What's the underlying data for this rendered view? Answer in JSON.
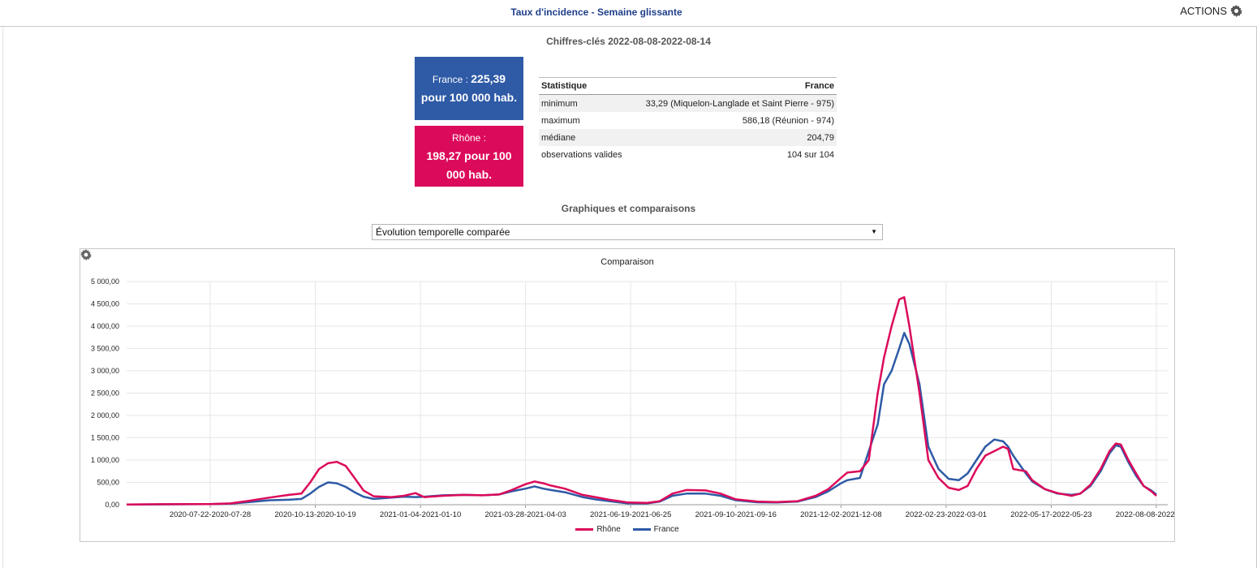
{
  "header": {
    "title": "Taux d'incidence - Semaine glissante",
    "actions_label": "ACTIONS"
  },
  "key_figures": {
    "title": "Chiffres-clés 2022-08-08-2022-08-14",
    "france": {
      "label": "France :",
      "value": "225,39",
      "unit": "pour 100 000 hab.",
      "color": "#2e5aa6"
    },
    "rhone": {
      "label": "Rhône :",
      "value": "198,27 pour 100 000 hab.",
      "color": "#dc0a5a"
    }
  },
  "stats_table": {
    "headers": [
      "Statistique",
      "France"
    ],
    "rows": [
      [
        "minimum",
        "33,29 (Miquelon-Langlade et Saint Pierre - 975)"
      ],
      [
        "maximum",
        "586,18 (Réunion - 974)"
      ],
      [
        "médiane",
        "204,79"
      ],
      [
        "observations valides",
        "104 sur 104"
      ]
    ]
  },
  "charts_section": {
    "title": "Graphiques et comparaisons",
    "select_value": "Évolution temporelle comparée"
  },
  "chart_data": {
    "type": "line",
    "title": "Comparaison",
    "ylim": [
      0,
      5000
    ],
    "yticks": [
      "0,00",
      "500,00",
      "1 000,00",
      "1 500,00",
      "2 000,00",
      "2 500,00",
      "3 000,00",
      "3 500,00",
      "4 000,00",
      "4 500,00",
      "5 000,00"
    ],
    "xlim": [
      "2020-05-20",
      "2022-08-20"
    ],
    "xticks": [
      {
        "label": "2020-07-22-2020-07-28",
        "date": "2020-07-25"
      },
      {
        "label": "2020-10-13-2020-10-19",
        "date": "2020-10-16"
      },
      {
        "label": "2021-01-04-2021-01-10",
        "date": "2021-01-07"
      },
      {
        "label": "2021-03-28-2021-04-03",
        "date": "2021-03-31"
      },
      {
        "label": "2021-06-19-2021-06-25",
        "date": "2021-06-22"
      },
      {
        "label": "2021-09-10-2021-09-16",
        "date": "2021-09-13"
      },
      {
        "label": "2021-12-02-2021-12-08",
        "date": "2021-12-05"
      },
      {
        "label": "2022-02-23-2022-03-01",
        "date": "2022-02-26"
      },
      {
        "label": "2022-05-17-2022-05-23",
        "date": "2022-05-20"
      },
      {
        "label": "2022-08-08-2022-08-14",
        "date": "2022-08-11"
      }
    ],
    "grid": true,
    "legend_position": "bottom",
    "series": [
      {
        "name": "Rhône",
        "color": "#dc0a5a",
        "points": [
          [
            "2020-05-20",
            5
          ],
          [
            "2020-06-15",
            10
          ],
          [
            "2020-07-10",
            12
          ],
          [
            "2020-07-25",
            15
          ],
          [
            "2020-08-10",
            30
          ],
          [
            "2020-08-25",
            90
          ],
          [
            "2020-09-10",
            160
          ],
          [
            "2020-09-25",
            220
          ],
          [
            "2020-10-05",
            250
          ],
          [
            "2020-10-12",
            500
          ],
          [
            "2020-10-19",
            800
          ],
          [
            "2020-10-26",
            930
          ],
          [
            "2020-11-02",
            960
          ],
          [
            "2020-11-09",
            870
          ],
          [
            "2020-11-16",
            600
          ],
          [
            "2020-11-23",
            320
          ],
          [
            "2020-12-01",
            190
          ],
          [
            "2020-12-15",
            170
          ],
          [
            "2020-12-25",
            200
          ],
          [
            "2021-01-03",
            260
          ],
          [
            "2021-01-10",
            170
          ],
          [
            "2021-01-25",
            200
          ],
          [
            "2021-02-10",
            220
          ],
          [
            "2021-02-25",
            210
          ],
          [
            "2021-03-10",
            230
          ],
          [
            "2021-03-20",
            330
          ],
          [
            "2021-03-31",
            460
          ],
          [
            "2021-04-07",
            520
          ],
          [
            "2021-04-14",
            480
          ],
          [
            "2021-04-20",
            430
          ],
          [
            "2021-05-01",
            360
          ],
          [
            "2021-05-15",
            220
          ],
          [
            "2021-05-25",
            170
          ],
          [
            "2021-06-05",
            110
          ],
          [
            "2021-06-20",
            50
          ],
          [
            "2021-07-05",
            40
          ],
          [
            "2021-07-15",
            80
          ],
          [
            "2021-07-25",
            250
          ],
          [
            "2021-08-05",
            330
          ],
          [
            "2021-08-20",
            320
          ],
          [
            "2021-09-01",
            250
          ],
          [
            "2021-09-13",
            120
          ],
          [
            "2021-09-30",
            70
          ],
          [
            "2021-10-15",
            60
          ],
          [
            "2021-11-01",
            80
          ],
          [
            "2021-11-15",
            200
          ],
          [
            "2021-11-25",
            350
          ],
          [
            "2021-12-05",
            600
          ],
          [
            "2021-12-10",
            720
          ],
          [
            "2021-12-20",
            750
          ],
          [
            "2021-12-27",
            1000
          ],
          [
            "2022-01-03",
            2500
          ],
          [
            "2022-01-08",
            3300
          ],
          [
            "2022-01-14",
            4000
          ],
          [
            "2022-01-20",
            4600
          ],
          [
            "2022-01-24",
            4650
          ],
          [
            "2022-01-28",
            4000
          ],
          [
            "2022-02-05",
            2500
          ],
          [
            "2022-02-12",
            1000
          ],
          [
            "2022-02-20",
            600
          ],
          [
            "2022-02-28",
            380
          ],
          [
            "2022-03-08",
            330
          ],
          [
            "2022-03-15",
            420
          ],
          [
            "2022-03-22",
            800
          ],
          [
            "2022-03-29",
            1100
          ],
          [
            "2022-04-05",
            1200
          ],
          [
            "2022-04-12",
            1300
          ],
          [
            "2022-04-16",
            1250
          ],
          [
            "2022-04-20",
            800
          ],
          [
            "2022-04-30",
            750
          ],
          [
            "2022-05-05",
            550
          ],
          [
            "2022-05-15",
            350
          ],
          [
            "2022-05-25",
            260
          ],
          [
            "2022-06-05",
            200
          ],
          [
            "2022-06-12",
            250
          ],
          [
            "2022-06-20",
            450
          ],
          [
            "2022-06-28",
            800
          ],
          [
            "2022-07-05",
            1200
          ],
          [
            "2022-07-10",
            1370
          ],
          [
            "2022-07-14",
            1350
          ],
          [
            "2022-07-20",
            1000
          ],
          [
            "2022-07-26",
            700
          ],
          [
            "2022-08-01",
            420
          ],
          [
            "2022-08-07",
            300
          ],
          [
            "2022-08-11",
            198
          ]
        ]
      },
      {
        "name": "France",
        "color": "#2e5aa6",
        "points": [
          [
            "2020-05-20",
            5
          ],
          [
            "2020-06-15",
            8
          ],
          [
            "2020-07-10",
            10
          ],
          [
            "2020-07-25",
            15
          ],
          [
            "2020-08-10",
            25
          ],
          [
            "2020-08-25",
            60
          ],
          [
            "2020-09-10",
            100
          ],
          [
            "2020-09-25",
            110
          ],
          [
            "2020-10-05",
            130
          ],
          [
            "2020-10-12",
            250
          ],
          [
            "2020-10-19",
            400
          ],
          [
            "2020-10-26",
            500
          ],
          [
            "2020-11-02",
            480
          ],
          [
            "2020-11-09",
            400
          ],
          [
            "2020-11-16",
            280
          ],
          [
            "2020-11-23",
            180
          ],
          [
            "2020-12-01",
            130
          ],
          [
            "2020-12-15",
            160
          ],
          [
            "2020-12-25",
            180
          ],
          [
            "2021-01-03",
            170
          ],
          [
            "2021-01-10",
            180
          ],
          [
            "2021-01-25",
            210
          ],
          [
            "2021-02-10",
            220
          ],
          [
            "2021-02-25",
            210
          ],
          [
            "2021-03-10",
            230
          ],
          [
            "2021-03-20",
            300
          ],
          [
            "2021-03-31",
            360
          ],
          [
            "2021-04-07",
            410
          ],
          [
            "2021-04-14",
            360
          ],
          [
            "2021-04-20",
            330
          ],
          [
            "2021-05-01",
            280
          ],
          [
            "2021-05-15",
            170
          ],
          [
            "2021-05-25",
            120
          ],
          [
            "2021-06-05",
            80
          ],
          [
            "2021-06-20",
            30
          ],
          [
            "2021-07-05",
            30
          ],
          [
            "2021-07-15",
            70
          ],
          [
            "2021-07-25",
            200
          ],
          [
            "2021-08-05",
            250
          ],
          [
            "2021-08-20",
            250
          ],
          [
            "2021-09-01",
            200
          ],
          [
            "2021-09-13",
            100
          ],
          [
            "2021-09-30",
            55
          ],
          [
            "2021-10-15",
            50
          ],
          [
            "2021-11-01",
            70
          ],
          [
            "2021-11-15",
            170
          ],
          [
            "2021-11-25",
            300
          ],
          [
            "2021-12-05",
            480
          ],
          [
            "2021-12-10",
            550
          ],
          [
            "2021-12-20",
            600
          ],
          [
            "2021-12-27",
            1200
          ],
          [
            "2022-01-03",
            1800
          ],
          [
            "2022-01-08",
            2700
          ],
          [
            "2022-01-14",
            3000
          ],
          [
            "2022-01-20",
            3500
          ],
          [
            "2022-01-24",
            3850
          ],
          [
            "2022-01-28",
            3600
          ],
          [
            "2022-02-05",
            2700
          ],
          [
            "2022-02-12",
            1300
          ],
          [
            "2022-02-20",
            800
          ],
          [
            "2022-02-28",
            580
          ],
          [
            "2022-03-08",
            550
          ],
          [
            "2022-03-15",
            700
          ],
          [
            "2022-03-22",
            1000
          ],
          [
            "2022-03-29",
            1300
          ],
          [
            "2022-04-05",
            1460
          ],
          [
            "2022-04-12",
            1420
          ],
          [
            "2022-04-16",
            1300
          ],
          [
            "2022-04-20",
            1100
          ],
          [
            "2022-04-30",
            700
          ],
          [
            "2022-05-05",
            520
          ],
          [
            "2022-05-15",
            350
          ],
          [
            "2022-05-25",
            250
          ],
          [
            "2022-06-05",
            220
          ],
          [
            "2022-06-12",
            250
          ],
          [
            "2022-06-20",
            420
          ],
          [
            "2022-06-28",
            750
          ],
          [
            "2022-07-05",
            1150
          ],
          [
            "2022-07-10",
            1330
          ],
          [
            "2022-07-14",
            1300
          ],
          [
            "2022-07-20",
            950
          ],
          [
            "2022-07-26",
            650
          ],
          [
            "2022-08-01",
            420
          ],
          [
            "2022-08-07",
            320
          ],
          [
            "2022-08-11",
            225
          ]
        ]
      }
    ]
  }
}
